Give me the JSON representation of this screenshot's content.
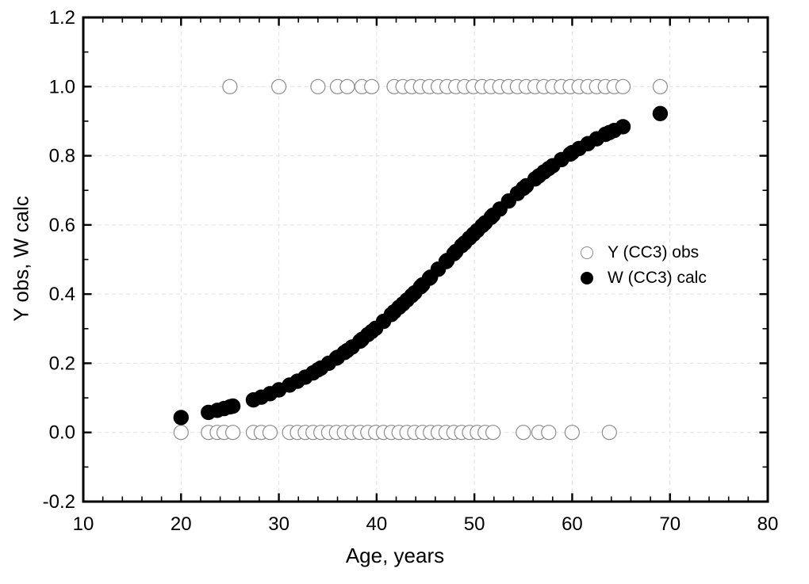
{
  "chart_data": {
    "type": "scatter",
    "title": "",
    "xlabel": "Age, years",
    "ylabel": "Y obs, W calc",
    "xlim": [
      10,
      80
    ],
    "ylim": [
      -0.2,
      1.2
    ],
    "x_major_ticks": [
      10,
      20,
      30,
      40,
      50,
      60,
      70,
      80
    ],
    "x_tick_labels": [
      "10",
      "20",
      "30",
      "40",
      "50",
      "60",
      "70",
      "80"
    ],
    "x_minor_step": 2,
    "y_major_ticks": [
      -0.2,
      0.0,
      0.2,
      0.4,
      0.6,
      0.8,
      1.0,
      1.2
    ],
    "y_tick_labels": [
      "-0.2",
      "0.0",
      "0.2",
      "0.4",
      "0.6",
      "0.8",
      "1.0",
      "1.2"
    ],
    "y_minor_step": 0.1,
    "grid": {
      "show": true,
      "style": "dashed",
      "color": "#e2e2e2"
    },
    "axis_color": "#000000",
    "legend": {
      "position": "right-middle",
      "items": [
        {
          "label": "Y (CC3) obs",
          "marker": "open-circle"
        },
        {
          "label": "W (CC3) calc",
          "marker": "filled-circle"
        }
      ]
    },
    "series": [
      {
        "name": "Y (CC3) obs",
        "marker": "open-circle",
        "fill": "#ffffff",
        "stroke": "#8c8c8c",
        "radius": 9,
        "points": [
          [
            20,
            0
          ],
          [
            22.8,
            0
          ],
          [
            23.7,
            0
          ],
          [
            24.4,
            0
          ],
          [
            25.3,
            0
          ],
          [
            27.4,
            0
          ],
          [
            28.2,
            0
          ],
          [
            29.1,
            0
          ],
          [
            31.1,
            0
          ],
          [
            31.9,
            0
          ],
          [
            32.7,
            0
          ],
          [
            33.5,
            0
          ],
          [
            34.3,
            0
          ],
          [
            35.1,
            0
          ],
          [
            35.9,
            0
          ],
          [
            36.7,
            0
          ],
          [
            37.5,
            0
          ],
          [
            38.3,
            0
          ],
          [
            39.1,
            0
          ],
          [
            39.9,
            0
          ],
          [
            40.7,
            0
          ],
          [
            41.5,
            0
          ],
          [
            42.3,
            0
          ],
          [
            43.1,
            0
          ],
          [
            43.9,
            0
          ],
          [
            44.7,
            0
          ],
          [
            45.5,
            0
          ],
          [
            46.3,
            0
          ],
          [
            47.1,
            0
          ],
          [
            47.9,
            0
          ],
          [
            48.7,
            0
          ],
          [
            49.5,
            0
          ],
          [
            50.3,
            0
          ],
          [
            51.1,
            0
          ],
          [
            51.9,
            0
          ],
          [
            55,
            0
          ],
          [
            56.6,
            0
          ],
          [
            57.6,
            0
          ],
          [
            60,
            0
          ],
          [
            63.8,
            0
          ],
          [
            25,
            1
          ],
          [
            30,
            1
          ],
          [
            34,
            1
          ],
          [
            36,
            1
          ],
          [
            37,
            1
          ],
          [
            38.5,
            1
          ],
          [
            39.5,
            1
          ],
          [
            41.8,
            1
          ],
          [
            42.7,
            1
          ],
          [
            43.6,
            1
          ],
          [
            44.5,
            1
          ],
          [
            45.4,
            1
          ],
          [
            46.3,
            1
          ],
          [
            47.2,
            1
          ],
          [
            48.1,
            1
          ],
          [
            49.0,
            1
          ],
          [
            49.9,
            1
          ],
          [
            50.8,
            1
          ],
          [
            51.7,
            1
          ],
          [
            52.6,
            1
          ],
          [
            53.5,
            1
          ],
          [
            54.4,
            1
          ],
          [
            55.3,
            1
          ],
          [
            56.2,
            1
          ],
          [
            57.1,
            1
          ],
          [
            58.0,
            1
          ],
          [
            58.9,
            1
          ],
          [
            59.8,
            1
          ],
          [
            60.7,
            1
          ],
          [
            61.6,
            1
          ],
          [
            62.5,
            1
          ],
          [
            63.4,
            1
          ],
          [
            64.3,
            1
          ],
          [
            65.2,
            1
          ],
          [
            69,
            1
          ]
        ]
      },
      {
        "name": "W (CC3) calc",
        "marker": "filled-circle",
        "fill": "#000000",
        "stroke": "#000000",
        "radius": 9.2,
        "points": [
          [
            20,
            0.043
          ],
          [
            22.8,
            0.058
          ],
          [
            23.7,
            0.064
          ],
          [
            24.4,
            0.069
          ],
          [
            25,
            0.074
          ],
          [
            25.3,
            0.076
          ],
          [
            27.4,
            0.094
          ],
          [
            28.2,
            0.102
          ],
          [
            29.1,
            0.112
          ],
          [
            30,
            0.123
          ],
          [
            31.1,
            0.137
          ],
          [
            31.9,
            0.148
          ],
          [
            32.7,
            0.16
          ],
          [
            33.5,
            0.172
          ],
          [
            34,
            0.181
          ],
          [
            34.3,
            0.186
          ],
          [
            35.1,
            0.2
          ],
          [
            35.9,
            0.215
          ],
          [
            36,
            0.217
          ],
          [
            36.7,
            0.231
          ],
          [
            37,
            0.237
          ],
          [
            37.5,
            0.247
          ],
          [
            38.3,
            0.264
          ],
          [
            38.5,
            0.269
          ],
          [
            39.1,
            0.283
          ],
          [
            39.5,
            0.292
          ],
          [
            39.9,
            0.301
          ],
          [
            40.7,
            0.321
          ],
          [
            41.5,
            0.341
          ],
          [
            41.8,
            0.349
          ],
          [
            42.3,
            0.362
          ],
          [
            42.7,
            0.372
          ],
          [
            43.1,
            0.383
          ],
          [
            43.6,
            0.396
          ],
          [
            43.9,
            0.404
          ],
          [
            44.5,
            0.421
          ],
          [
            44.7,
            0.427
          ],
          [
            45.4,
            0.446
          ],
          [
            45.5,
            0.449
          ],
          [
            46.3,
            0.472
          ],
          [
            46.3,
            0.472
          ],
          [
            47.1,
            0.494
          ],
          [
            47.2,
            0.497
          ],
          [
            47.9,
            0.517
          ],
          [
            48.1,
            0.523
          ],
          [
            48.7,
            0.54
          ],
          [
            49.0,
            0.548
          ],
          [
            49.5,
            0.562
          ],
          [
            49.9,
            0.573
          ],
          [
            50.3,
            0.584
          ],
          [
            50.8,
            0.598
          ],
          [
            51.1,
            0.606
          ],
          [
            51.7,
            0.622
          ],
          [
            51.9,
            0.628
          ],
          [
            52.6,
            0.646
          ],
          [
            53.5,
            0.669
          ],
          [
            54.4,
            0.691
          ],
          [
            55,
            0.706
          ],
          [
            55.3,
            0.713
          ],
          [
            56.2,
            0.733
          ],
          [
            56.6,
            0.742
          ],
          [
            57.1,
            0.753
          ],
          [
            57.6,
            0.763
          ],
          [
            58.0,
            0.771
          ],
          [
            58.9,
            0.789
          ],
          [
            59.8,
            0.805
          ],
          [
            60,
            0.809
          ],
          [
            60.7,
            0.821
          ],
          [
            61.6,
            0.835
          ],
          [
            62.5,
            0.849
          ],
          [
            63.4,
            0.862
          ],
          [
            63.8,
            0.867
          ],
          [
            64.3,
            0.873
          ],
          [
            65.2,
            0.884
          ],
          [
            69,
            0.922
          ]
        ]
      }
    ]
  }
}
